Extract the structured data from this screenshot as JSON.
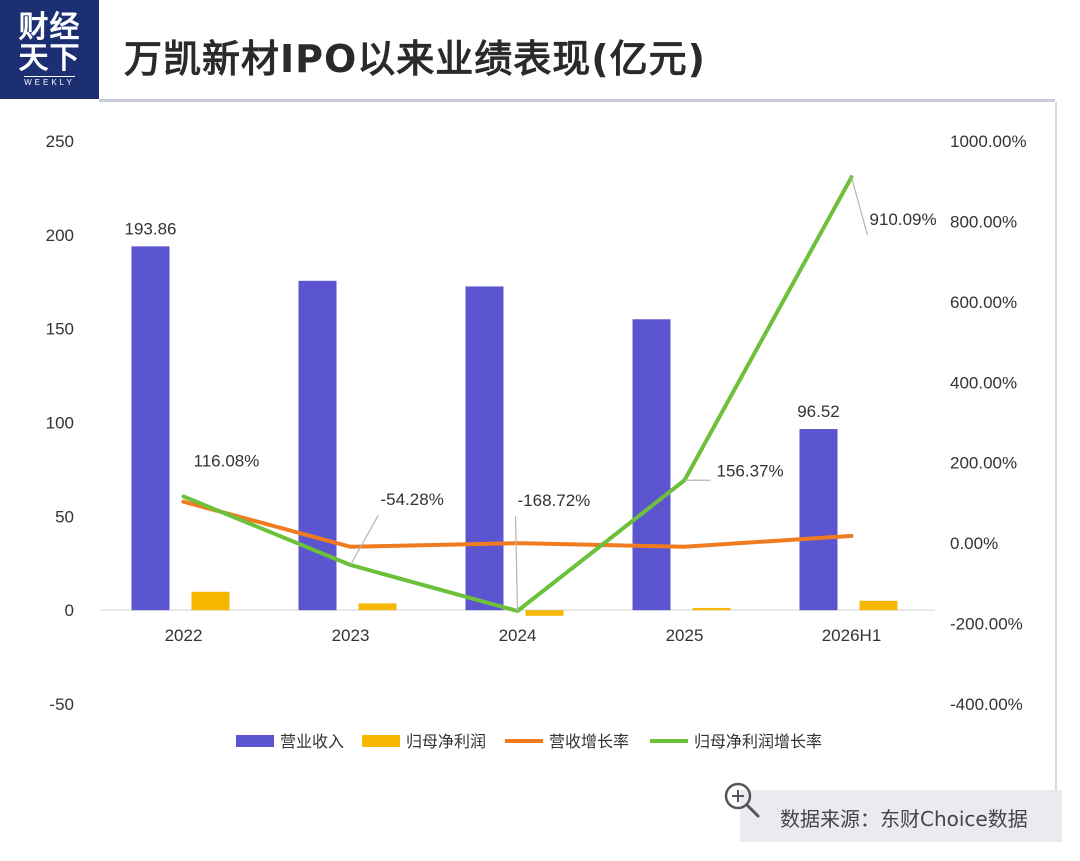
{
  "header": {
    "logo_line1": "财经",
    "logo_line2": "天下",
    "logo_line3": "WEEKLY",
    "title": "万凯新材IPO以来业绩表现(亿元)"
  },
  "source": {
    "text": "数据来源：东财Choice数据"
  },
  "colors": {
    "revenue": "#5b55cf",
    "net_profit": "#f5b700",
    "revenue_growth": "#f07c1f",
    "profit_growth": "#6dc03a",
    "logo_bg": "#1c2f73"
  },
  "chart_data": {
    "type": "bar",
    "title": "",
    "categories": [
      "2022",
      "2023",
      "2024",
      "2025",
      "2026H1"
    ],
    "left_axis": {
      "ylim": [
        -50,
        250
      ],
      "ticks": [
        "250",
        "200",
        "150",
        "100",
        "50",
        "0",
        "-50"
      ],
      "tick_values": [
        250,
        200,
        150,
        100,
        50,
        0,
        -50
      ]
    },
    "right_axis": {
      "ylim": [
        -400,
        1000
      ],
      "ticks": [
        "1000.00%",
        "800.00%",
        "600.00%",
        "400.00%",
        "200.00%",
        "0.00%",
        "-200.00%",
        "-400.00%"
      ],
      "tick_values": [
        1000,
        800,
        600,
        400,
        200,
        0,
        -200,
        -400
      ]
    },
    "series": [
      {
        "name": "营业收入",
        "kind": "bar",
        "axis": "left",
        "values": [
          193.86,
          175.5,
          172.5,
          155.0,
          96.52
        ],
        "labels": [
          "193.86",
          "",
          "",
          "",
          "96.52"
        ]
      },
      {
        "name": "归母净利润",
        "kind": "bar",
        "axis": "left",
        "values": [
          9.8,
          3.6,
          -3.0,
          1.2,
          5.0
        ],
        "labels": [
          "",
          "",
          "",
          "",
          ""
        ]
      },
      {
        "name": "营收增长率",
        "kind": "line",
        "axis": "right",
        "values": [
          103,
          -9,
          0,
          -9,
          18
        ],
        "labels": [
          "",
          "",
          "",
          "",
          ""
        ]
      },
      {
        "name": "归母净利润增长率",
        "kind": "line",
        "axis": "right",
        "values": [
          116.08,
          -54.28,
          -168.72,
          156.37,
          910.09
        ],
        "labels": [
          "116.08%",
          "-54.28%",
          "-168.72%",
          "156.37%",
          "910.09%"
        ]
      }
    ],
    "legend_position": "bottom",
    "grid": false
  }
}
